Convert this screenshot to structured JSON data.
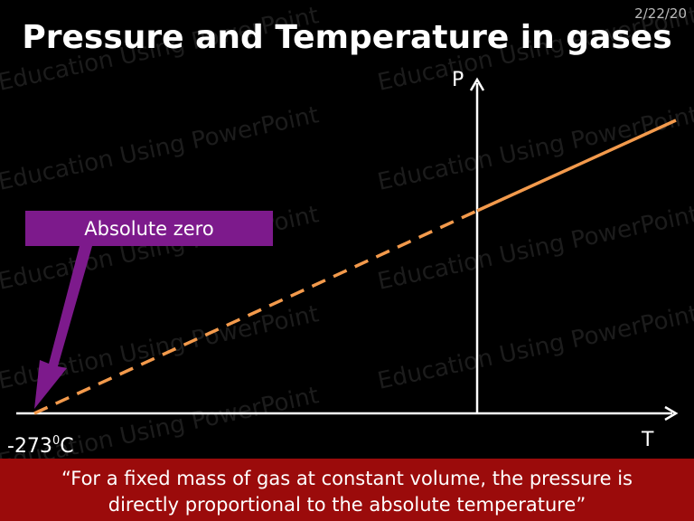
{
  "header": {
    "date": "2/22/20",
    "title": "Pressure and Temperature in gases"
  },
  "watermark": "Education Using PowerPoint",
  "graph": {
    "y_axis_label": "P",
    "x_axis_label": "T",
    "callout": "Absolute zero",
    "zero_label": {
      "number": "-273",
      "degree": "0",
      "unit": "C"
    }
  },
  "footer": {
    "lines": [
      "“For a fixed mass of gas at constant volume, the pressure is",
      "directly proportional to the absolute temperature”"
    ]
  }
}
